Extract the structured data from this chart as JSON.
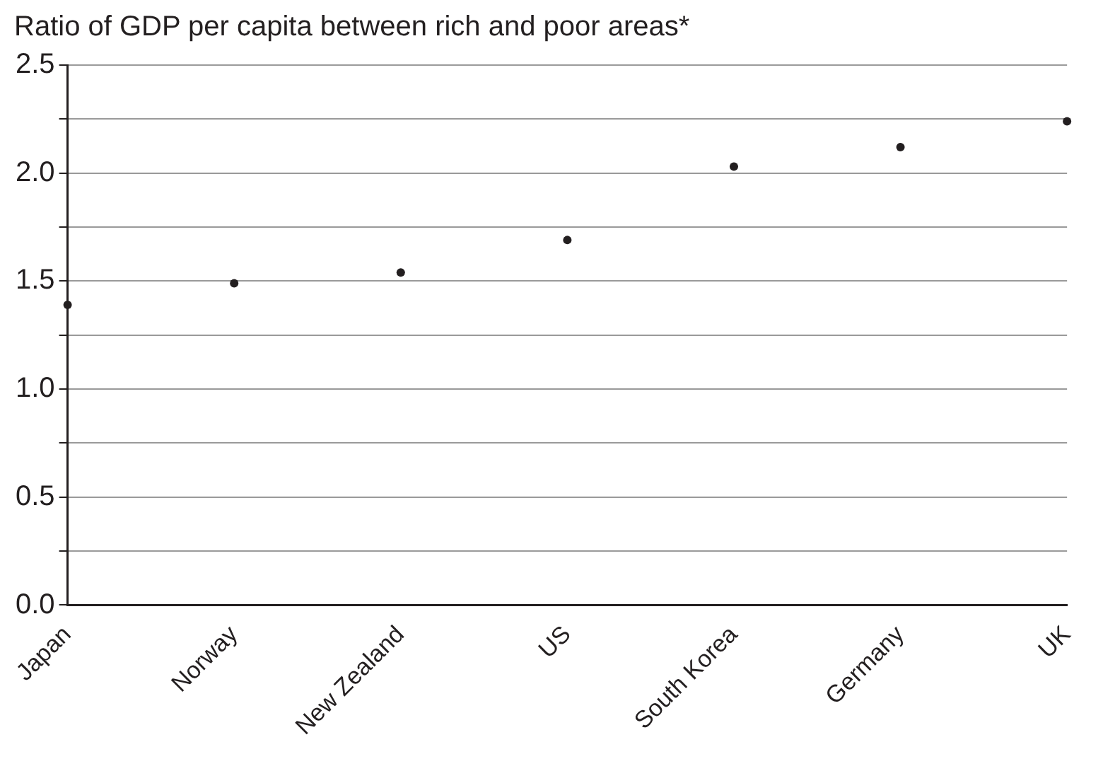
{
  "chart_data": {
    "type": "scatter",
    "title": "Ratio of GDP per capita between rich and poor areas*",
    "categories": [
      "Japan",
      "Norway",
      "New Zealand",
      "US",
      "South Korea",
      "Germany",
      "UK"
    ],
    "values": [
      1.39,
      1.49,
      1.54,
      1.69,
      2.03,
      2.12,
      2.24
    ],
    "color": "#231f20",
    "marker": "circle",
    "grid": "y",
    "legend": false,
    "ylim": [
      0,
      2.5
    ],
    "yticks": [
      {
        "value": 0,
        "label": "0.0"
      },
      {
        "value": 0.25,
        "label": null
      },
      0.5,
      {
        "value": 0.75,
        "label": null
      },
      {
        "value": 1,
        "label": "1.0"
      },
      {
        "value": 1.25,
        "label": null
      },
      1.5,
      {
        "value": 1.75,
        "label": null
      },
      {
        "value": 2,
        "label": "2.0"
      },
      {
        "value": 2.25,
        "label": null
      },
      2.5
    ]
  }
}
